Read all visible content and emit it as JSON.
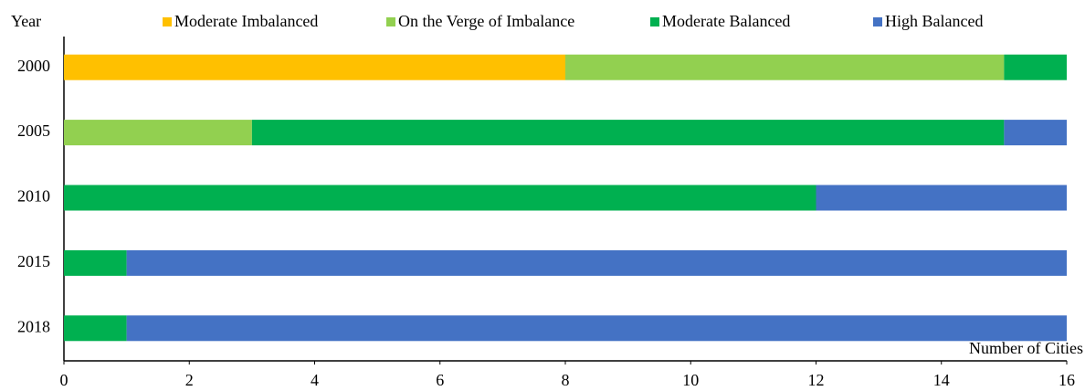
{
  "chart_data": {
    "type": "stacked_barh",
    "y_axis_label": "Year",
    "x_axis_label": "Number of Cities",
    "categories": [
      "2000",
      "2005",
      "2010",
      "2015",
      "2018"
    ],
    "series": [
      {
        "name": "Moderate Imbalanced",
        "color": "#FFC000",
        "values": [
          8,
          0,
          0,
          0,
          0
        ]
      },
      {
        "name": "On the Verge of Imbalance",
        "color": "#92D050",
        "values": [
          7,
          3,
          0,
          0,
          0
        ]
      },
      {
        "name": "Moderate Balanced",
        "color": "#00B050",
        "values": [
          1,
          12,
          12,
          1,
          1
        ]
      },
      {
        "name": "High Balanced",
        "color": "#4472C4",
        "values": [
          0,
          1,
          4,
          15,
          15
        ]
      }
    ],
    "xlim": [
      0,
      16
    ],
    "xticks": [
      0,
      2,
      4,
      6,
      8,
      10,
      12,
      14,
      16
    ],
    "legend": "top",
    "grid": false
  }
}
